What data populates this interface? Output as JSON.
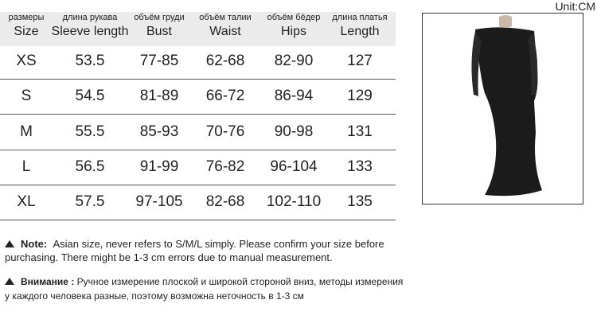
{
  "unit": "Unit:CM",
  "table": {
    "columns": [
      {
        "ru": "размеры",
        "en": "Size"
      },
      {
        "ru": "длина рукава",
        "en": "Sleeve length"
      },
      {
        "ru": "объём груди",
        "en": "Bust"
      },
      {
        "ru": "объём талии",
        "en": "Waist"
      },
      {
        "ru": "объём бёдер",
        "en": "Hips"
      },
      {
        "ru": "длина платья",
        "en": "Length"
      }
    ],
    "rows": [
      [
        "XS",
        "53.5",
        "77-85",
        "62-68",
        "82-90",
        "127"
      ],
      [
        "S",
        "54.5",
        "81-89",
        "66-72",
        "86-94",
        "129"
      ],
      [
        "M",
        "55.5",
        "85-93",
        "70-76",
        "90-98",
        "131"
      ],
      [
        "L",
        "56.5",
        "91-99",
        "76-82",
        "96-104",
        "133"
      ],
      [
        "XL",
        "57.5",
        "97-105",
        "82-68",
        "102-110",
        "135"
      ]
    ]
  },
  "notes": [
    {
      "label": "Note:",
      "text": "Asian size, never refers to S/M/L simply. Please confirm your size before purchasing. There might be 1-3 cm errors due to manual measurement."
    },
    {
      "label": "Внимание :",
      "text": "Ручное измерение плоской и широкой стороной вниз, методы измерения у каждого человека разные, поэтому возможна неточность в 1-3 см"
    }
  ]
}
